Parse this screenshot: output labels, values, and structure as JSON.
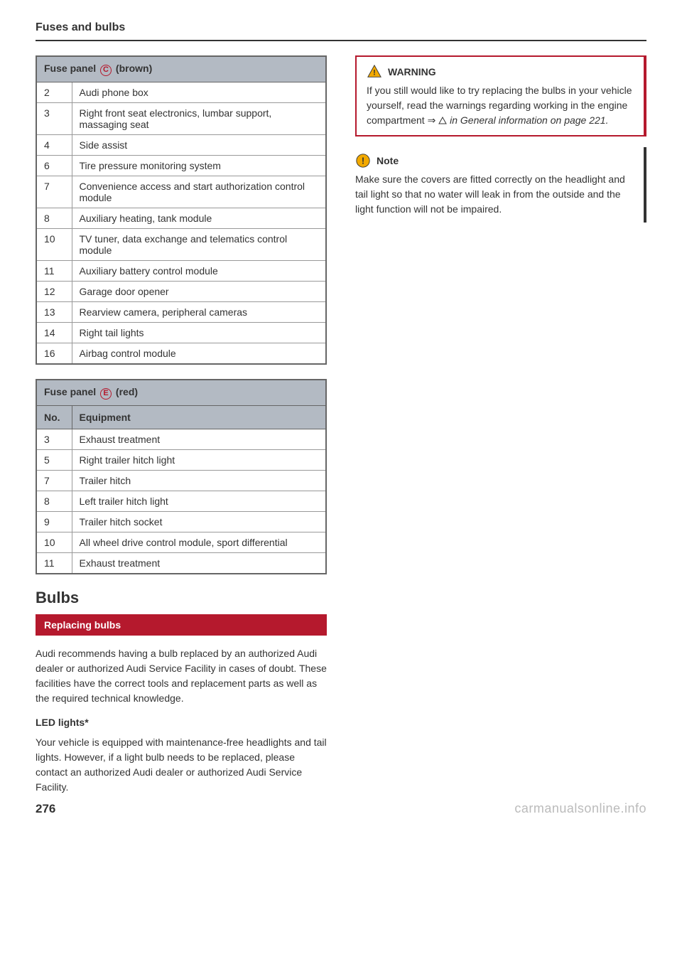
{
  "header": "Fuses and bulbs",
  "table1": {
    "header_prefix": "Fuse panel ",
    "header_letter": "C",
    "header_suffix": " (brown)",
    "rows": [
      {
        "no": "2",
        "eq": "Audi phone box"
      },
      {
        "no": "3",
        "eq": "Right front seat electronics, lumbar support, massaging seat"
      },
      {
        "no": "4",
        "eq": "Side assist"
      },
      {
        "no": "6",
        "eq": "Tire pressure monitoring system"
      },
      {
        "no": "7",
        "eq": "Convenience access and start authorization control module"
      },
      {
        "no": "8",
        "eq": "Auxiliary heating, tank module"
      },
      {
        "no": "10",
        "eq": "TV tuner, data exchange and telematics control module"
      },
      {
        "no": "11",
        "eq": "Auxiliary battery control module"
      },
      {
        "no": "12",
        "eq": "Garage door opener"
      },
      {
        "no": "13",
        "eq": "Rearview camera, peripheral cameras"
      },
      {
        "no": "14",
        "eq": "Right tail lights"
      },
      {
        "no": "16",
        "eq": "Airbag control module"
      }
    ]
  },
  "table2": {
    "header_prefix": "Fuse panel ",
    "header_letter": "E",
    "header_suffix": " (red)",
    "col1": "No.",
    "col2": "Equipment",
    "rows": [
      {
        "no": "3",
        "eq": "Exhaust treatment"
      },
      {
        "no": "5",
        "eq": "Right trailer hitch light"
      },
      {
        "no": "7",
        "eq": "Trailer hitch"
      },
      {
        "no": "8",
        "eq": "Left trailer hitch light"
      },
      {
        "no": "9",
        "eq": "Trailer hitch socket"
      },
      {
        "no": "10",
        "eq": "All wheel drive control module, sport differential"
      },
      {
        "no": "11",
        "eq": "Exhaust treatment"
      }
    ]
  },
  "bulbs": {
    "heading": "Bulbs",
    "banner": "Replacing bulbs",
    "para1": "Audi recommends having a bulb replaced by an authorized Audi dealer or authorized Audi Service Facility in cases of doubt. These facilities have the correct tools and replacement parts as well as the required technical knowledge.",
    "sub": "LED lights*",
    "para2": "Your vehicle is equipped with maintenance-free headlights and tail lights. However, if a light bulb needs to be replaced, please contact an authorized Audi dealer or authorized Audi Service Facility."
  },
  "warning": {
    "title": "WARNING",
    "text_prefix": "If you still would like to try replacing the bulbs in your vehicle yourself, read the warnings regarding working in the engine compartment ⇒ ",
    "text_italic": " in General information on page 221.",
    "triangle_color": "#f2a900",
    "border_color": "#b5192d"
  },
  "note": {
    "title": "Note",
    "text": "Make sure the covers are fitted correctly on the headlight and tail light so that no water will leak in from the outside and the light function will not be impaired.",
    "icon_color": "#f2a900"
  },
  "page_number": "276",
  "watermark": "carmanualsonline.info"
}
